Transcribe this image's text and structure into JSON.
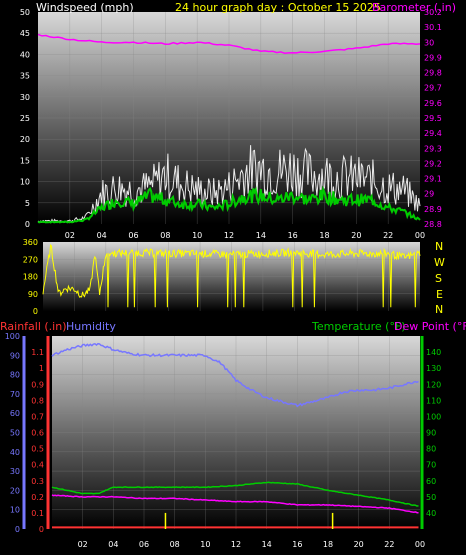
{
  "header": {
    "left_label": "Windspeed (mph)",
    "title": "24 hour graph day : October 15 2025",
    "right_label": "Barometer (.in)"
  },
  "wind_dir_labels": [
    "N",
    "W",
    "S",
    "E",
    "N"
  ],
  "bottom_labels": {
    "rainfall": "Rainfall (.in)",
    "humidity": "Humidity",
    "temperature": "Temperature (°F)",
    "dewpoint": "Dew Point (°F)"
  },
  "colors": {
    "wind": "#ffffff",
    "wind_avg": "#00cc00",
    "barometer": "#ff00ff",
    "direction": "#ffff00",
    "rainfall": "#ff3333",
    "humidity": "#7777ff",
    "temperature": "#00cc00",
    "dewpoint": "#ff00ff",
    "rain_bar": "#ffff00"
  },
  "chart_data": [
    {
      "type": "line",
      "title": "24 hour graph day : October 15 2025",
      "x_ticks": [
        "02",
        "04",
        "06",
        "08",
        "10",
        "12",
        "14",
        "16",
        "18",
        "20",
        "22",
        "00"
      ],
      "xlabel": "",
      "ylabel_left": "Windspeed (mph)",
      "ylabel_right": "Barometer (.in)",
      "ylim_left": [
        0,
        50
      ],
      "yticks_left": [
        "0",
        "5",
        "10",
        "15",
        "20",
        "25",
        "30",
        "35",
        "40",
        "45",
        "50"
      ],
      "ylim_right": [
        28.8,
        30.2
      ],
      "yticks_right": [
        "28.8",
        "28.9",
        "29",
        "29.1",
        "29.2",
        "29.3",
        "29.4",
        "29.5",
        "29.6",
        "29.7",
        "29.8",
        "29.9",
        "30",
        "30.1",
        "30.2"
      ],
      "series": [
        {
          "name": "Barometer",
          "axis": "right",
          "x": [
            0,
            2,
            4,
            6,
            8,
            10,
            12,
            14,
            16,
            18,
            20,
            22,
            24
          ],
          "y": [
            30.05,
            30.02,
            30.0,
            30.0,
            29.99,
            30.0,
            29.98,
            29.94,
            29.93,
            29.94,
            29.96,
            29.99,
            29.99
          ]
        },
        {
          "name": "Wind gust",
          "axis": "left",
          "x": [
            0,
            1,
            2,
            3,
            4,
            5,
            6,
            7,
            8,
            9,
            10,
            11,
            12,
            13,
            14,
            15,
            16,
            17,
            18,
            19,
            20,
            21,
            22,
            23,
            24
          ],
          "y": [
            1,
            1,
            1,
            2,
            10,
            12,
            11,
            12,
            16,
            13,
            11,
            10,
            12,
            17,
            18,
            17,
            18,
            16,
            16,
            15,
            15,
            14,
            12,
            11,
            6
          ]
        },
        {
          "name": "Wind average",
          "axis": "left",
          "x": [
            0,
            1,
            2,
            3,
            4,
            5,
            6,
            7,
            8,
            9,
            10,
            11,
            12,
            13,
            14,
            15,
            16,
            17,
            18,
            19,
            20,
            21,
            22,
            23,
            24
          ],
          "y": [
            0.5,
            0.5,
            0.5,
            1,
            4,
            6,
            5,
            7,
            6,
            5,
            5,
            4,
            5,
            7,
            7,
            6,
            7,
            6,
            7,
            6,
            6,
            6,
            4,
            3,
            1
          ]
        }
      ]
    },
    {
      "type": "line",
      "title": "",
      "x_ticks": [],
      "ylim": [
        0,
        360
      ],
      "yticks": [
        "0",
        "90",
        "180",
        "270",
        "360"
      ],
      "series": [
        {
          "name": "Wind direction",
          "x": [
            0,
            0.5,
            1,
            1.5,
            2,
            2.5,
            3,
            3.3,
            3.6,
            4,
            6,
            8,
            10,
            12,
            14,
            16,
            18,
            20,
            22,
            23,
            24
          ],
          "y": [
            100,
            340,
            90,
            120,
            115,
            80,
            110,
            300,
            90,
            300,
            305,
            300,
            300,
            295,
            300,
            305,
            295,
            300,
            300,
            280,
            300
          ]
        }
      ]
    },
    {
      "type": "line",
      "title": "",
      "x_ticks": [
        "02",
        "04",
        "06",
        "08",
        "10",
        "12",
        "14",
        "16",
        "18",
        "20",
        "22",
        "00"
      ],
      "ylabel_left": "Humidity / Rainfall (.in)",
      "ylabel_right": "Temperature (°F) / Dew Point (°F)",
      "ylim_humidity": [
        0,
        100
      ],
      "yticks_humidity": [
        "0",
        "10",
        "20",
        "30",
        "40",
        "50",
        "60",
        "70",
        "80",
        "90",
        "100"
      ],
      "ylim_rain": [
        0,
        1.2
      ],
      "yticks_rain": [
        "0",
        "0.1",
        "0.2",
        "0.3",
        "0.4",
        "0.5",
        "0.6",
        "0.7",
        "0.8",
        "0.9",
        "1",
        "1.1"
      ],
      "ylim_right": [
        30,
        150
      ],
      "yticks_right": [
        "40",
        "50",
        "60",
        "70",
        "80",
        "90",
        "100",
        "110",
        "120",
        "130",
        "140"
      ],
      "series": [
        {
          "name": "Humidity",
          "axis": "humidity",
          "x": [
            0,
            1,
            2,
            3,
            4,
            5,
            6,
            8,
            10,
            11,
            12,
            13,
            14,
            15,
            16,
            17,
            18,
            19,
            20,
            21,
            22,
            23,
            24
          ],
          "y": [
            90,
            93,
            95,
            96,
            93,
            91,
            90,
            90,
            90,
            86,
            77,
            72,
            68,
            66,
            64,
            66,
            68,
            71,
            72,
            72,
            73,
            75,
            77
          ]
        },
        {
          "name": "Temperature",
          "axis": "right",
          "x": [
            0,
            2,
            3,
            4,
            6,
            8,
            10,
            12,
            14,
            16,
            17,
            18,
            20,
            22,
            24
          ],
          "y": [
            56,
            52,
            52,
            56,
            56,
            56,
            56,
            57,
            59,
            58,
            56,
            54,
            51,
            48,
            44
          ]
        },
        {
          "name": "Dew Point",
          "axis": "right",
          "x": [
            0,
            2,
            4,
            6,
            8,
            10,
            12,
            14,
            16,
            18,
            20,
            22,
            24
          ],
          "y": [
            51,
            50,
            50,
            49,
            49,
            48,
            47,
            47,
            45,
            45,
            44,
            43,
            40
          ]
        },
        {
          "name": "Rainfall",
          "axis": "rain",
          "x": [
            0,
            24
          ],
          "y": [
            0.01,
            0.01
          ]
        }
      ],
      "rain_marks": [
        {
          "x": 7.4,
          "y": 0.1
        },
        {
          "x": 18.3,
          "y": 0.1
        }
      ]
    }
  ]
}
